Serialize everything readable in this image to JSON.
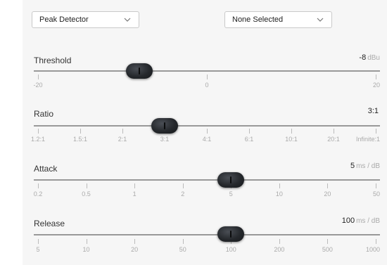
{
  "dropdowns": {
    "detector": {
      "selected": "Peak Detector"
    },
    "sidechain": {
      "selected": "None Selected"
    }
  },
  "sections": [
    {
      "key": "threshold",
      "title": "Threshold",
      "value": "-8",
      "unit": "dBu",
      "ticks": [
        "-20",
        "0",
        "20"
      ],
      "position": 0.3
    },
    {
      "key": "ratio",
      "title": "Ratio",
      "value": "3:1",
      "unit": "",
      "ticks": [
        "1.2:1",
        "1.5:1",
        "2:1",
        "3:1",
        "4:1",
        "6:1",
        "10:1",
        "20:1",
        "Infinite:1"
      ],
      "position": 0.375
    },
    {
      "key": "attack",
      "title": "Attack",
      "value": "5",
      "unit": "ms / dB",
      "ticks": [
        "0.2",
        "0.5",
        "1",
        "2",
        "5",
        "10",
        "20",
        "50"
      ],
      "position": 0.571
    },
    {
      "key": "release",
      "title": "Release",
      "value": "100",
      "unit": "ms / dB",
      "ticks": [
        "5",
        "10",
        "20",
        "50",
        "100",
        "200",
        "500",
        "1000"
      ],
      "position": 0.571
    }
  ],
  "icons": {
    "dropdown_chevron": "chevron-down-icon",
    "slider_knob": "knob-icon"
  }
}
